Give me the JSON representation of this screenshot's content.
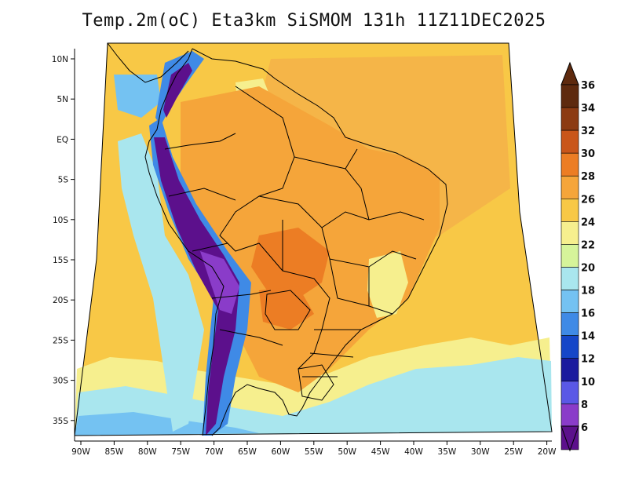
{
  "title": "Temp.2m(oC) Eta3km SiSMOM 131h 11Z11DEC2025",
  "lat_labels": [
    "10N",
    "5N",
    "EQ",
    "5S",
    "10S",
    "15S",
    "20S",
    "25S",
    "30S",
    "35S"
  ],
  "lon_labels": [
    "90W",
    "85W",
    "80W",
    "75W",
    "70W",
    "65W",
    "60W",
    "55W",
    "50W",
    "45W",
    "40W",
    "35W",
    "30W",
    "25W",
    "20W"
  ],
  "colorbar": {
    "labels": [
      "36",
      "34",
      "32",
      "30",
      "28",
      "26",
      "24",
      "22",
      "20",
      "18",
      "16",
      "14",
      "12",
      "10",
      "8",
      "6"
    ],
    "colors": [
      "#5e2a0e",
      "#8c3b12",
      "#c9561a",
      "#ec7d24",
      "#f5a53a",
      "#f8c846",
      "#f6ef8e",
      "#d6f49a",
      "#a9e6ee",
      "#74c2f2",
      "#3f8ae6",
      "#1546c8",
      "#1a1a9e",
      "#5a58e6",
      "#8a3cc9",
      "#5c108c"
    ],
    "top_color": "#5e2a0e",
    "bottom_color": "#5c108c"
  },
  "field_colors": {
    "ocean_warm": "#f5b548",
    "ocean_mild": "#f8c846",
    "ocean_cool": "#f6ef8e",
    "ocean_cold": "#a9e6ee",
    "ocean_colder": "#74c2f2",
    "land_hot": "#ec7d24",
    "land_warm": "#f5a53a",
    "andes_mid": "#3f8ae6",
    "andes_high": "#5c108c",
    "andes_peak": "#8a3cc9"
  }
}
